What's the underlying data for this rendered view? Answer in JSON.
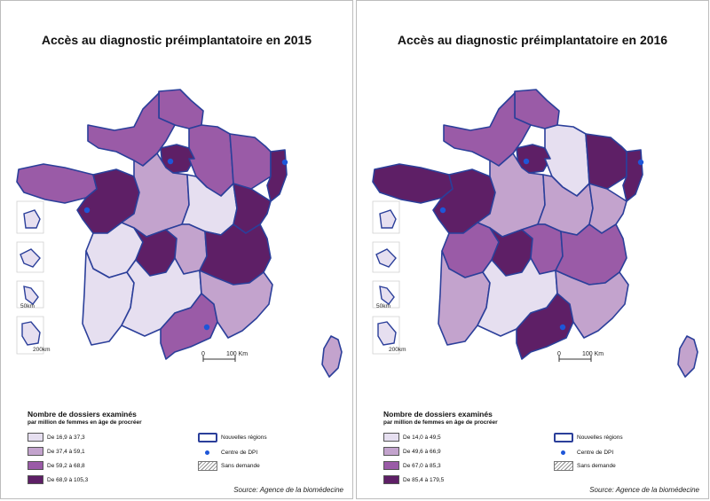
{
  "maps": [
    {
      "title": "Accès au diagnostic préimplantatoire en 2015",
      "legend_title": "Nombre de dossiers examinés",
      "legend_subtitle": "par million de femmes en âge de procréer",
      "classes": [
        {
          "label": "De 16,9 à 37,3",
          "color": "#e6dff0"
        },
        {
          "label": "De 37,4 à 59,1",
          "color": "#c3a3cd"
        },
        {
          "label": "De 59,2 à 68,8",
          "color": "#9a5ba7"
        },
        {
          "label": "De 68,9 à 105,3",
          "color": "#5e1f66"
        }
      ],
      "symbols": {
        "regions": "Nouvelles régions",
        "dpi": "Centre de DPI",
        "none": "Sans demande"
      },
      "source": "Source: Agence de la biomédecine",
      "scale": {
        "zero": "0",
        "label": "100 Km"
      },
      "insets": {
        "a": "50km",
        "b": "200km"
      }
    },
    {
      "title": "Accès au diagnostic préimplantatoire en 2016",
      "legend_title": "Nombre de dossiers examinés",
      "legend_subtitle": "par million de femmes en âge de procréer",
      "classes": [
        {
          "label": "De 14,0 à 49,5",
          "color": "#e6dff0"
        },
        {
          "label": "De 49,6 à 66,9",
          "color": "#c3a3cd"
        },
        {
          "label": "De 67,0 à 85,3",
          "color": "#9a5ba7"
        },
        {
          "label": "De 85,4 à 179,5",
          "color": "#5e1f66"
        }
      ],
      "symbols": {
        "regions": "Nouvelles régions",
        "dpi": "Centre de DPI",
        "none": "Sans demande"
      },
      "source": "Source: Agence de la biomédecine",
      "scale": {
        "zero": "0",
        "label": "100 Km"
      },
      "insets": {
        "a": "50km",
        "b": "200km"
      }
    }
  ],
  "fills": [
    {
      "hdf": 3,
      "norm": 3,
      "idf": 4,
      "ge_w": 3,
      "ge_e": 3,
      "alsace": 4,
      "bret": 3,
      "pdl": 4,
      "cvl": 2,
      "bfc_w": 1,
      "bfc_e": 4,
      "nouv_n": 1,
      "nouv_s": 1,
      "limousin": 4,
      "ara_w": 2,
      "ara_e": 4,
      "occ": 1,
      "paca": 2,
      "corse": 2,
      "occ_e": 3
    },
    {
      "hdf": 3,
      "norm": 3,
      "idf": 4,
      "ge_w": 1,
      "ge_e": 4,
      "alsace": 4,
      "bret": 4,
      "pdl": 4,
      "cvl": 2,
      "bfc_w": 2,
      "bfc_e": 2,
      "nouv_n": 3,
      "nouv_s": 2,
      "limousin": 4,
      "ara_w": 3,
      "ara_e": 3,
      "occ": 1,
      "paca": 2,
      "corse": 2,
      "occ_e": 4
    }
  ]
}
